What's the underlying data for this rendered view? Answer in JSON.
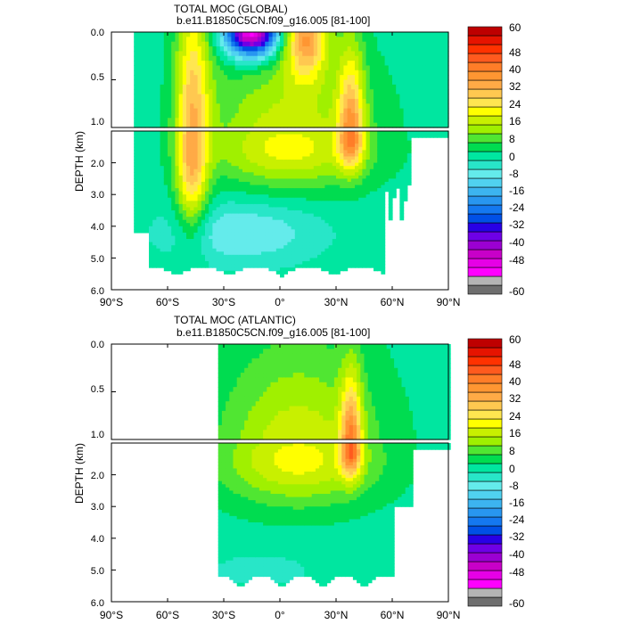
{
  "colorbar": {
    "levels": [
      -60,
      -56,
      -52,
      -48,
      -44,
      -40,
      -36,
      -32,
      -28,
      -24,
      -20,
      -16,
      -12,
      -8,
      -4,
      0,
      4,
      8,
      12,
      16,
      20,
      24,
      28,
      32,
      36,
      40,
      44,
      48,
      52,
      56,
      60
    ],
    "colors": [
      "#6e6e6e",
      "#b4b4b4",
      "#ff00ff",
      "#e600e6",
      "#c800c8",
      "#9b00d2",
      "#6e00e6",
      "#2800e6",
      "#0050e6",
      "#1478f0",
      "#2896f0",
      "#3cb4f0",
      "#50d2f0",
      "#64ebeb",
      "#28e6c8",
      "#00e6a0",
      "#00dc50",
      "#50e632",
      "#a0f000",
      "#c8f000",
      "#ffff00",
      "#ffe650",
      "#ffc850",
      "#ffaa46",
      "#ff9632",
      "#ff7d28",
      "#ff5a1e",
      "#ff3200",
      "#e61400",
      "#be0000"
    ],
    "labels": [
      "60",
      "48",
      "40",
      "32",
      "24",
      "16",
      "8",
      "0",
      "-8",
      "-16",
      "-24",
      "-32",
      "-40",
      "-48",
      "-60"
    ]
  },
  "chart_data": [
    {
      "type": "heatmap",
      "title": "TOTAL MOC (GLOBAL)",
      "subtitle": "b.e11.B1850C5CN.f09_g16.005 [81-100]",
      "ylabel": "DEPTH (km)",
      "xlabel": "",
      "x_ticks": [
        "90°S",
        "60°S",
        "30°S",
        "0°",
        "30°N",
        "60°N",
        "90°N"
      ],
      "x_tick_values": [
        -90,
        -60,
        -30,
        0,
        30,
        60,
        90
      ],
      "y_ticks_upper": [
        "0.0",
        "0.5",
        "1.0"
      ],
      "y_ticks_lower": [
        "2.0",
        "3.0",
        "4.0",
        "5.0",
        "6.0"
      ],
      "xlim": [
        -90,
        90
      ],
      "ylim": [
        0,
        6
      ],
      "depth_break_km": 1.0,
      "lat_range": [
        -80,
        90
      ],
      "features": [
        {
          "lat": -47,
          "depth": 2.0,
          "value": 28,
          "sx": 6,
          "sz": 1.5
        },
        {
          "lat": -45,
          "depth": 0.5,
          "value": 8,
          "sx": 8,
          "sz": 0.7
        },
        {
          "lat": -15,
          "depth": 0.0,
          "value": -55,
          "sx": 10,
          "sz": 0.18
        },
        {
          "lat": 14,
          "depth": 0.05,
          "value": 30,
          "sx": 8,
          "sz": 0.3
        },
        {
          "lat": 5,
          "depth": 1.5,
          "value": 20,
          "sx": 30,
          "sz": 0.9
        },
        {
          "lat": 38,
          "depth": 1.2,
          "value": 30,
          "sx": 5,
          "sz": 0.7
        },
        {
          "lat": -20,
          "depth": 4.2,
          "value": -10,
          "sx": 28,
          "sz": 0.7
        }
      ]
    },
    {
      "type": "heatmap",
      "title": "TOTAL MOC (ATLANTIC)",
      "subtitle": "b.e11.B1850C5CN.f09_g16.005 [81-100]",
      "ylabel": "DEPTH (km)",
      "xlabel": "",
      "x_ticks": [
        "90°S",
        "60°S",
        "30°S",
        "0°",
        "30°N",
        "60°N",
        "90°N"
      ],
      "x_tick_values": [
        -90,
        -60,
        -30,
        0,
        30,
        60,
        90
      ],
      "y_ticks_upper": [
        "0.0",
        "0.5",
        "1.0"
      ],
      "y_ticks_lower": [
        "2.0",
        "3.0",
        "4.0",
        "5.0",
        "6.0"
      ],
      "xlim": [
        -90,
        90
      ],
      "ylim": [
        0,
        6
      ],
      "depth_break_km": 1.0,
      "lat_range": [
        -33,
        90
      ],
      "features": [
        {
          "lat": 10,
          "depth": 1.5,
          "value": 20,
          "sx": 30,
          "sz": 1.0
        },
        {
          "lat": 38,
          "depth": 1.2,
          "value": 32,
          "sx": 4,
          "sz": 0.6
        },
        {
          "lat": -10,
          "depth": 5.0,
          "value": -4,
          "sx": 20,
          "sz": 0.4
        }
      ]
    }
  ]
}
